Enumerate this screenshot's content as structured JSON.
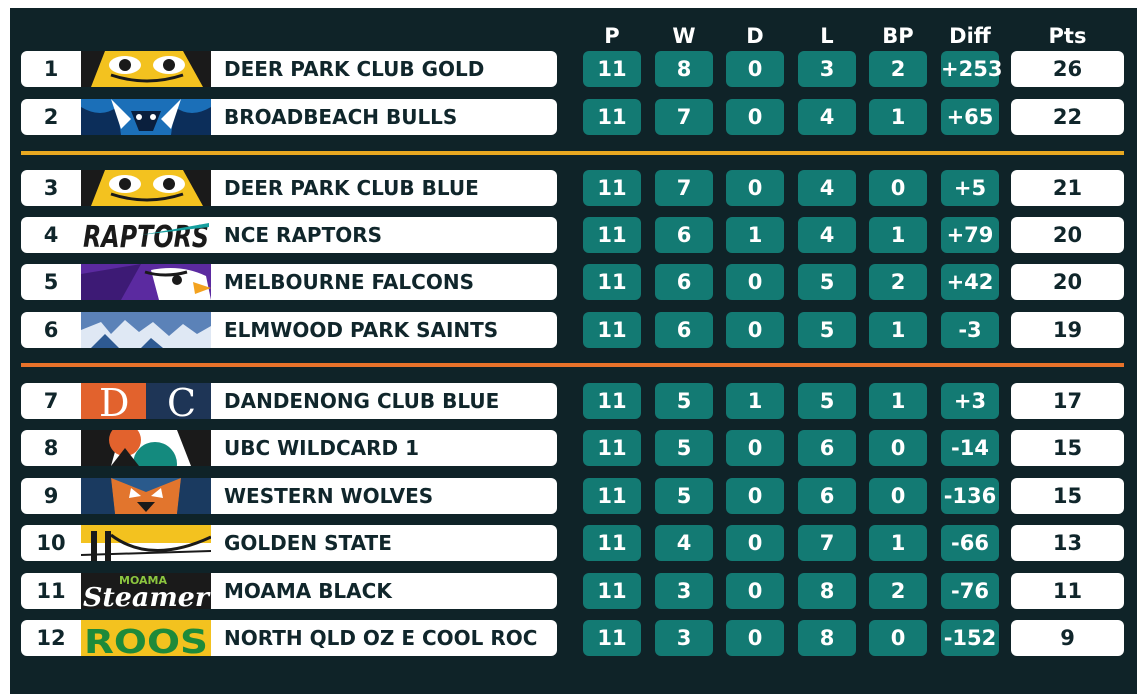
{
  "header": {
    "p": "P",
    "w": "W",
    "d": "D",
    "l": "L",
    "bp": "BP",
    "diff": "Diff",
    "pts": "Pts"
  },
  "divider_colors": [
    "#e8a821",
    "#e8722a"
  ],
  "colors": {
    "background": "#0f2328",
    "stat_cell": "#137a73",
    "row_bg": "#ffffff",
    "text_dark": "#10262b"
  },
  "rows": [
    {
      "rank": "1",
      "team": "DEER PARK CLUB GOLD",
      "logo_icon": "gold-dog-logo-icon",
      "p": "11",
      "w": "8",
      "d": "0",
      "l": "3",
      "bp": "2",
      "diff": "+253",
      "pts": "26"
    },
    {
      "rank": "2",
      "team": "BROADBEACH BULLS",
      "logo_icon": "blue-bull-logo-icon",
      "p": "11",
      "w": "7",
      "d": "0",
      "l": "4",
      "bp": "1",
      "diff": "+65",
      "pts": "22"
    },
    {
      "rank": "3",
      "team": "DEER PARK CLUB BLUE",
      "logo_icon": "gold-dog-logo-icon",
      "p": "11",
      "w": "7",
      "d": "0",
      "l": "4",
      "bp": "0",
      "diff": "+5",
      "pts": "21"
    },
    {
      "rank": "4",
      "team": "NCE RAPTORS",
      "logo_icon": "raptors-logo-icon",
      "p": "11",
      "w": "6",
      "d": "1",
      "l": "4",
      "bp": "1",
      "diff": "+79",
      "pts": "20"
    },
    {
      "rank": "5",
      "team": "MELBOURNE FALCONS",
      "logo_icon": "purple-falcon-logo-icon",
      "p": "11",
      "w": "6",
      "d": "0",
      "l": "5",
      "bp": "2",
      "diff": "+42",
      "pts": "20"
    },
    {
      "rank": "6",
      "team": "ELMWOOD PARK SAINTS",
      "logo_icon": "blue-saints-logo-icon",
      "p": "11",
      "w": "6",
      "d": "0",
      "l": "5",
      "bp": "1",
      "diff": "-3",
      "pts": "19"
    },
    {
      "rank": "7",
      "team": "DANDENONG CLUB BLUE",
      "logo_icon": "dc-logo-icon",
      "p": "11",
      "w": "5",
      "d": "1",
      "l": "5",
      "bp": "1",
      "diff": "+3",
      "pts": "17"
    },
    {
      "rank": "8",
      "team": "UBC WILDCARD 1",
      "logo_icon": "wildcard-logo-icon",
      "p": "11",
      "w": "5",
      "d": "0",
      "l": "6",
      "bp": "0",
      "diff": "-14",
      "pts": "15"
    },
    {
      "rank": "9",
      "team": "WESTERN WOLVES",
      "logo_icon": "wolf-logo-icon",
      "p": "11",
      "w": "5",
      "d": "0",
      "l": "6",
      "bp": "0",
      "diff": "-136",
      "pts": "15"
    },
    {
      "rank": "10",
      "team": "GOLDEN STATE",
      "logo_icon": "golden-gate-logo-icon",
      "p": "11",
      "w": "4",
      "d": "0",
      "l": "7",
      "bp": "1",
      "diff": "-66",
      "pts": "13"
    },
    {
      "rank": "11",
      "team": "MOAMA BLACK",
      "logo_icon": "steamers-logo-icon",
      "logo_text_top": "MOAMA",
      "logo_text_main": "Steamer",
      "p": "11",
      "w": "3",
      "d": "0",
      "l": "8",
      "bp": "2",
      "diff": "-76",
      "pts": "11"
    },
    {
      "rank": "12",
      "team": "NORTH QLD OZ E COOL ROC",
      "logo_icon": "roos-logo-icon",
      "logo_text_main": "ROOS",
      "p": "11",
      "w": "3",
      "d": "0",
      "l": "8",
      "bp": "0",
      "diff": "-152",
      "pts": "9"
    }
  ]
}
